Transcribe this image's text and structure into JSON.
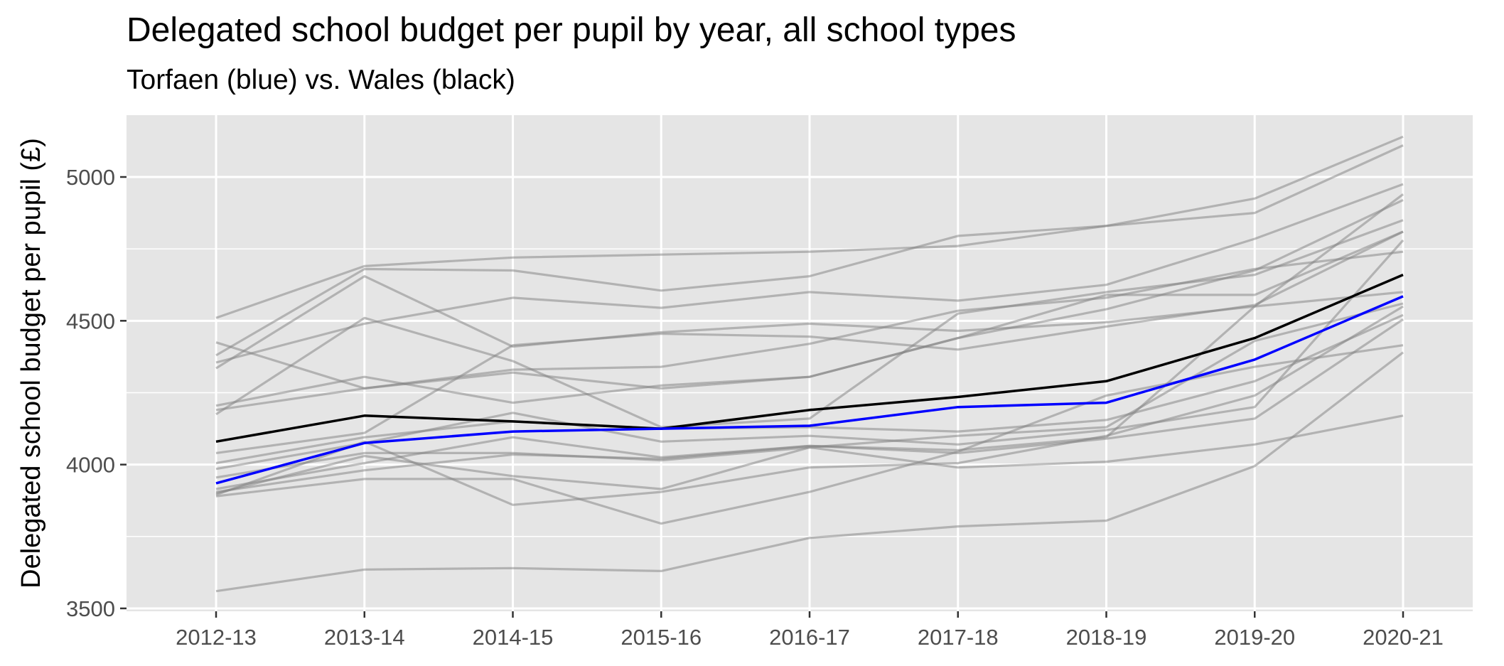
{
  "chart_data": {
    "type": "line",
    "title": "Delegated school budget per pupil by year, all school types",
    "subtitle": "Torfaen (blue) vs. Wales (black)",
    "xlabel": "",
    "ylabel": "Delegated school budget per pupil (£)",
    "categories": [
      "2012-13",
      "2013-14",
      "2014-15",
      "2015-16",
      "2016-17",
      "2017-18",
      "2018-19",
      "2019-20",
      "2020-21"
    ],
    "yticks": [
      3500,
      4000,
      4500,
      5000
    ],
    "ylim": [
      3490,
      5215
    ],
    "grid": true,
    "colors": {
      "panel": "#e5e5e5",
      "grid": "#ffffff",
      "other_series": "#7f7f7f",
      "highlight": "#0000ff",
      "reference": "#000000"
    },
    "other_series": [
      [
        4510,
        4690,
        4720,
        4730,
        4740,
        4760,
        4830,
        4925,
        5140
      ],
      [
        4380,
        4680,
        4675,
        4605,
        4655,
        4795,
        4830,
        4875,
        5110
      ],
      [
        4355,
        4490,
        4580,
        4545,
        4600,
        4570,
        4625,
        4785,
        4975
      ],
      [
        4335,
        4655,
        4410,
        4460,
        4490,
        4465,
        4495,
        4550,
        4940
      ],
      [
        4425,
        4265,
        4330,
        4340,
        4420,
        4535,
        4580,
        4680,
        4740
      ],
      [
        4205,
        4305,
        4215,
        4275,
        4305,
        4440,
        4540,
        4675,
        4920
      ],
      [
        4190,
        4265,
        4320,
        4265,
        4305,
        4440,
        4590,
        4590,
        4810
      ],
      [
        4175,
        4510,
        4360,
        4130,
        4160,
        4525,
        4600,
        4660,
        4850
      ],
      [
        4040,
        4110,
        4415,
        4455,
        4445,
        4400,
        4480,
        4555,
        4810
      ],
      [
        4005,
        4095,
        4150,
        4125,
        4130,
        4115,
        4155,
        4290,
        4520
      ],
      [
        3985,
        4075,
        4180,
        4080,
        4100,
        4070,
        4120,
        4200,
        4780
      ],
      [
        3955,
        4040,
        4040,
        4015,
        4060,
        4100,
        4130,
        4430,
        4560
      ],
      [
        3915,
        4005,
        4095,
        4025,
        4065,
        4050,
        4095,
        4550,
        4600
      ],
      [
        3905,
        3980,
        4035,
        4020,
        4065,
        4040,
        4090,
        4160,
        4505
      ],
      [
        3900,
        4030,
        3960,
        3915,
        4060,
        3990,
        4010,
        4070,
        4170
      ],
      [
        3890,
        3950,
        3950,
        3795,
        3905,
        4045,
        4240,
        4340,
        4415
      ],
      [
        3895,
        4080,
        3860,
        3905,
        3990,
        4005,
        4100,
        4240,
        4550
      ],
      [
        3560,
        3635,
        3640,
        3630,
        3745,
        3785,
        3805,
        3995,
        4390
      ]
    ],
    "series": [
      {
        "name": "Wales",
        "color": "#000000",
        "values": [
          4080,
          4170,
          4150,
          4125,
          4190,
          4235,
          4290,
          4440,
          4660
        ]
      },
      {
        "name": "Torfaen",
        "color": "#0000ff",
        "values": [
          3935,
          4075,
          4115,
          4125,
          4135,
          4200,
          4215,
          4365,
          4585
        ]
      }
    ]
  }
}
